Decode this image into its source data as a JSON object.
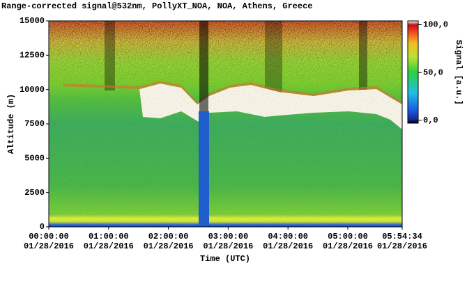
{
  "chart_data": {
    "type": "heatmap",
    "title": "Range-corrected signal@532nm, PollyXT_NOA, NOA, Athens, Greece",
    "xlabel": "Time (UTC)",
    "ylabel": "Altitude (m)",
    "colorbar_label": "Signal [a.u.]",
    "xlim": [
      0,
      21274
    ],
    "xticks": [
      {
        "value": 0,
        "label": "00:00:00",
        "date": "01/28/2016"
      },
      {
        "value": 3600,
        "label": "01:00:00",
        "date": "01/28/2016"
      },
      {
        "value": 7200,
        "label": "02:00:00",
        "date": "01/28/2016"
      },
      {
        "value": 10800,
        "label": "03:00:00",
        "date": "01/28/2016"
      },
      {
        "value": 14400,
        "label": "04:00:00",
        "date": "01/28/2016"
      },
      {
        "value": 18000,
        "label": "05:00:00",
        "date": "01/28/2016"
      },
      {
        "value": 21274,
        "label": "05:54:34",
        "date": "01/28/2016"
      }
    ],
    "ylim": [
      0,
      15000
    ],
    "yticks": [
      0,
      2500,
      5000,
      7500,
      10000,
      12500,
      15000
    ],
    "clim": [
      -3,
      104
    ],
    "cticks": [
      {
        "value": 100,
        "label": "100,0"
      },
      {
        "value": 50,
        "label": "50,0"
      },
      {
        "value": 0,
        "label": "0,0"
      }
    ]
  }
}
